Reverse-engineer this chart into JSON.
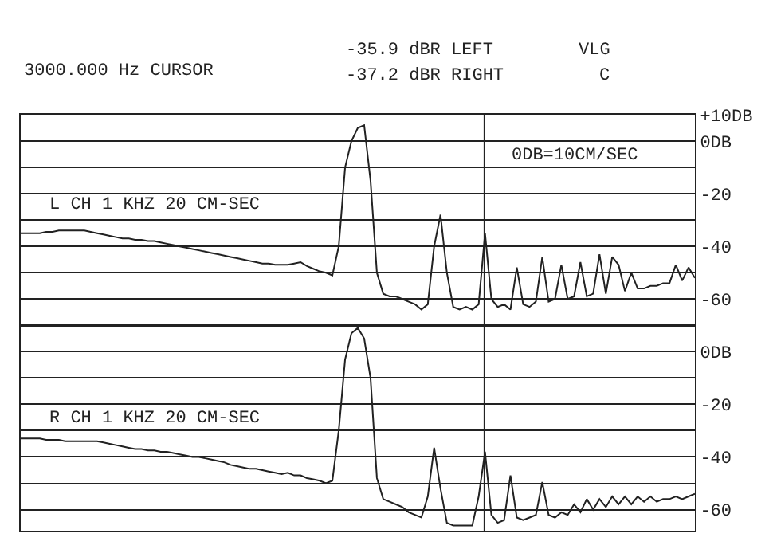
{
  "chart_data": [
    {
      "type": "line",
      "categories": [
        null,
        null,
        null,
        null,
        null,
        null,
        null,
        null,
        null,
        null,
        null,
        null,
        null,
        null,
        null,
        null,
        null,
        null,
        null,
        null,
        null,
        null,
        null,
        null,
        null,
        null,
        null,
        null,
        null,
        null,
        null,
        null,
        null,
        null,
        null,
        null,
        null,
        null,
        null,
        null,
        null,
        null,
        null,
        null,
        null,
        null,
        null,
        null,
        null,
        null,
        null,
        null,
        null,
        null,
        null,
        null,
        null,
        null,
        null,
        null,
        null,
        null,
        null,
        null,
        null,
        null,
        null,
        null,
        null,
        null,
        null,
        null,
        null,
        null,
        null,
        null,
        null,
        null,
        null,
        null,
        null,
        null,
        null,
        null,
        null,
        null,
        null,
        null,
        null,
        null,
        null,
        null,
        null,
        null,
        null,
        null,
        null,
        null,
        null,
        null,
        null,
        null,
        null,
        null,
        null,
        null,
        null
      ],
      "series": [
        {
          "color": "#222222",
          "values": [
            -35,
            -35,
            -35,
            -35,
            -34.5,
            -34.5,
            -34,
            -34,
            -34,
            -34,
            -34,
            -34.5,
            -35,
            -35.5,
            -36,
            -36.5,
            -37,
            -37,
            -37.5,
            -37.5,
            -38,
            -38,
            -38.5,
            -39,
            -39.5,
            -40,
            -40.5,
            -41,
            -41.5,
            -42,
            -42.5,
            -43,
            -43.5,
            -44,
            -44.5,
            -45,
            -45.5,
            -46,
            -46.5,
            -46.5,
            -47,
            -47,
            -47,
            -46.5,
            -46,
            -47.5,
            -48.5,
            -49.5,
            -50,
            -51,
            -40,
            -10,
            0,
            5,
            6,
            -15,
            -50,
            -58,
            -59,
            -59,
            -60,
            -61,
            -62,
            -64,
            -62,
            -40,
            -28,
            -50,
            -63,
            -64,
            -63,
            -64,
            -62,
            -35,
            -60,
            -63,
            -62,
            -64,
            -48,
            -62,
            -63,
            -61,
            -44,
            -61,
            -60,
            -47,
            -60,
            -59,
            -46,
            -59,
            -58,
            -43,
            -58,
            -44,
            -47,
            -57,
            -50,
            -56,
            -56,
            -55,
            -55,
            -54,
            -54,
            -47,
            -53,
            -48,
            -52
          ]
        }
      ],
      "ylim": [
        -70,
        10
      ],
      "yticks": [
        {
          "value": 10,
          "label": "+10DB"
        },
        {
          "value": 0,
          "label": "0DB"
        },
        {
          "value": -10,
          "label": null
        },
        -20,
        {
          "value": -30,
          "label": null
        },
        -40,
        {
          "value": -50,
          "label": null
        },
        -60,
        {
          "value": -70,
          "label": null
        }
      ],
      "grid": "y",
      "tick_labels": "y",
      "marker": "none",
      "line_style": "solid",
      "annotations": [
        "3000.000 Hz CURSOR",
        "-35.9 dBR LEFT",
        "-37.2 dBR RIGHT",
        "VLG",
        "C",
        "0DB=10CM/SEC",
        "L CH 1 KHZ 20 CM-SEC"
      ]
    },
    {
      "type": "line",
      "categories": [
        null,
        null,
        null,
        null,
        null,
        null,
        null,
        null,
        null,
        null,
        null,
        null,
        null,
        null,
        null,
        null,
        null,
        null,
        null,
        null,
        null,
        null,
        null,
        null,
        null,
        null,
        null,
        null,
        null,
        null,
        null,
        null,
        null,
        null,
        null,
        null,
        null,
        null,
        null,
        null,
        null,
        null,
        null,
        null,
        null,
        null,
        null,
        null,
        null,
        null,
        null,
        null,
        null,
        null,
        null,
        null,
        null,
        null,
        null,
        null,
        null,
        null,
        null,
        null,
        null,
        null,
        null,
        null,
        null,
        null,
        null,
        null,
        null,
        null,
        null,
        null,
        null,
        null,
        null,
        null,
        null,
        null,
        null,
        null,
        null,
        null,
        null,
        null,
        null,
        null,
        null,
        null,
        null,
        null,
        null,
        null,
        null,
        null,
        null,
        null,
        null,
        null,
        null,
        null,
        null,
        null,
        null
      ],
      "series": [
        {
          "color": "#222222",
          "values": [
            -33,
            -33,
            -33,
            -33,
            -33.5,
            -33.5,
            -33.5,
            -34,
            -34,
            -34,
            -34,
            -34,
            -34,
            -34.5,
            -35,
            -35.5,
            -36,
            -36.5,
            -37,
            -37,
            -37.5,
            -37.5,
            -38,
            -38,
            -38.5,
            -39,
            -39.5,
            -40,
            -40,
            -40.5,
            -41,
            -41.5,
            -42,
            -43,
            -43.5,
            -44,
            -44.5,
            -44.5,
            -45,
            -45.5,
            -46,
            -46.5,
            -46,
            -47,
            -47,
            -48,
            -48.5,
            -49,
            -50,
            -49,
            -30,
            -3,
            7,
            9,
            5,
            -10,
            -48,
            -56,
            -57,
            -58,
            -59,
            -61,
            -62,
            -63,
            -55,
            -36.5,
            -52,
            -65,
            -66,
            -66,
            -66,
            -66,
            -55,
            -38,
            -62,
            -65,
            -64,
            -47,
            -63,
            -64,
            -63,
            -62,
            -49.5,
            -62,
            -63,
            -61,
            -62,
            -58,
            -61,
            -56,
            -60,
            -56,
            -59,
            -55,
            -58,
            -55,
            -58,
            -55,
            -57,
            -55,
            -57,
            -56,
            -56,
            -55,
            -56,
            -55,
            -54
          ]
        }
      ],
      "ylim": [
        -68,
        10
      ],
      "yticks": [
        {
          "value": 10,
          "label": null
        },
        {
          "value": 0,
          "label": "0DB"
        },
        {
          "value": -10,
          "label": null
        },
        -20,
        {
          "value": -30,
          "label": null
        },
        -40,
        {
          "value": -50,
          "label": null
        },
        -60
      ],
      "grid": "y",
      "tick_labels": "y",
      "marker": "none",
      "line_style": "solid",
      "annotations": [
        "R CH 1 KHZ 20 CM-SEC"
      ]
    }
  ]
}
